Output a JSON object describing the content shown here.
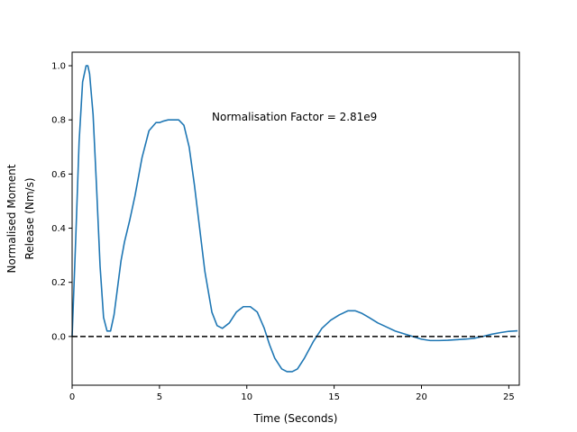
{
  "chart_data": {
    "type": "line",
    "title": "",
    "xlabel": "Time (Seconds)",
    "ylabel_lines": [
      "Normalised Moment",
      "Release (Nm/s)"
    ],
    "xlim": [
      0,
      25.6
    ],
    "ylim": [
      -0.18,
      1.05
    ],
    "x_ticks": [
      0,
      5,
      10,
      15,
      20,
      25
    ],
    "y_ticks": [
      0.0,
      0.2,
      0.4,
      0.6,
      0.8,
      1.0
    ],
    "x_tick_labels": [
      "0",
      "5",
      "10",
      "15",
      "20",
      "25"
    ],
    "y_tick_labels": [
      "0.0",
      "0.2",
      "0.4",
      "0.6",
      "0.8",
      "1.0"
    ],
    "grid": false,
    "annotation": {
      "text": "Normalisation Factor = 2.81e9",
      "x": 8.0,
      "y": 0.81
    },
    "reference_line": {
      "y": 0.0,
      "style": "dashed",
      "color": "#000000"
    },
    "series": [
      {
        "color": "#1f77b4",
        "x": [
          0,
          0.2,
          0.4,
          0.6,
          0.8,
          0.9,
          1.0,
          1.2,
          1.4,
          1.6,
          1.8,
          2.0,
          2.2,
          2.4,
          2.6,
          2.8,
          3.0,
          3.3,
          3.6,
          4.0,
          4.4,
          4.8,
          5.0,
          5.2,
          5.5,
          5.8,
          6.1,
          6.4,
          6.7,
          7.0,
          7.3,
          7.6,
          8.0,
          8.3,
          8.6,
          9.0,
          9.4,
          9.8,
          10.2,
          10.6,
          11.0,
          11.3,
          11.6,
          12.0,
          12.3,
          12.6,
          12.9,
          13.3,
          13.8,
          14.3,
          14.8,
          15.3,
          15.8,
          16.2,
          16.6,
          17.0,
          17.5,
          18.0,
          18.5,
          19.0,
          19.5,
          20.0,
          20.5,
          21.0,
          21.5,
          22.0,
          22.5,
          23.0,
          23.5,
          24.0,
          24.5,
          25.0,
          25.5
        ],
        "values": [
          0.0,
          0.35,
          0.72,
          0.94,
          1.0,
          1.0,
          0.97,
          0.82,
          0.55,
          0.26,
          0.07,
          0.02,
          0.02,
          0.08,
          0.18,
          0.28,
          0.35,
          0.43,
          0.52,
          0.66,
          0.76,
          0.79,
          0.79,
          0.795,
          0.8,
          0.8,
          0.8,
          0.78,
          0.7,
          0.56,
          0.4,
          0.24,
          0.09,
          0.04,
          0.03,
          0.05,
          0.09,
          0.11,
          0.11,
          0.09,
          0.03,
          -0.03,
          -0.08,
          -0.12,
          -0.13,
          -0.13,
          -0.12,
          -0.08,
          -0.02,
          0.03,
          0.06,
          0.08,
          0.095,
          0.095,
          0.085,
          0.07,
          0.05,
          0.035,
          0.02,
          0.01,
          0.0,
          -0.01,
          -0.015,
          -0.015,
          -0.014,
          -0.012,
          -0.01,
          -0.007,
          0.0,
          0.008,
          0.014,
          0.019,
          0.021
        ]
      }
    ]
  }
}
